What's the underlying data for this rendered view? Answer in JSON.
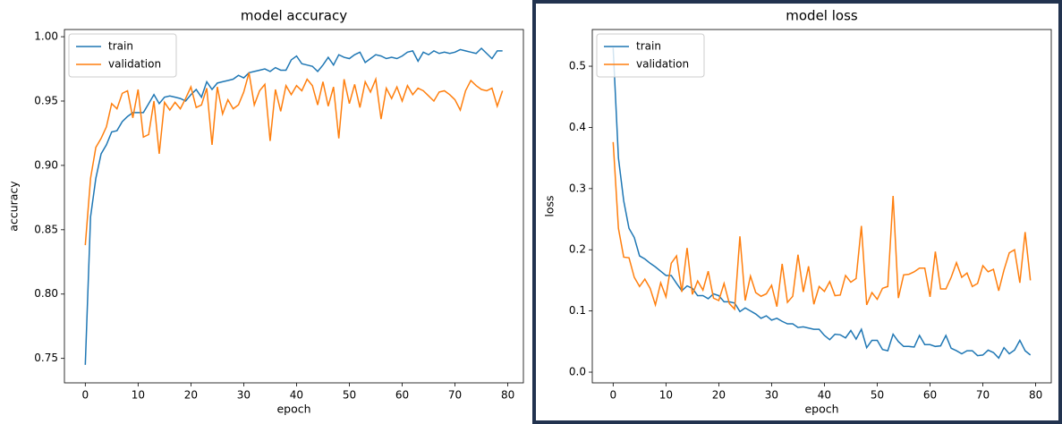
{
  "chart_data": [
    {
      "type": "line",
      "title": "model accuracy",
      "xlabel": "epoch",
      "ylabel": "accuracy",
      "x": [
        0,
        1,
        2,
        3,
        4,
        5,
        6,
        7,
        8,
        9,
        10,
        11,
        12,
        13,
        14,
        15,
        16,
        17,
        18,
        19,
        20,
        21,
        22,
        23,
        24,
        25,
        26,
        27,
        28,
        29,
        30,
        31,
        32,
        33,
        34,
        35,
        36,
        37,
        38,
        39,
        40,
        41,
        42,
        43,
        44,
        45,
        46,
        47,
        48,
        49,
        50,
        51,
        52,
        53,
        54,
        55,
        56,
        57,
        58,
        59,
        60,
        61,
        62,
        63,
        64,
        65,
        66,
        67,
        68,
        69,
        70,
        71,
        72,
        73,
        74,
        75,
        76,
        77,
        78,
        79
      ],
      "series": [
        {
          "name": "train",
          "color": "#1f77b4",
          "values": [
            0.745,
            0.86,
            0.89,
            0.909,
            0.916,
            0.926,
            0.927,
            0.934,
            0.938,
            0.941,
            0.941,
            0.941,
            0.948,
            0.955,
            0.948,
            0.953,
            0.954,
            0.953,
            0.952,
            0.95,
            0.955,
            0.959,
            0.953,
            0.965,
            0.959,
            0.964,
            0.965,
            0.966,
            0.967,
            0.97,
            0.968,
            0.972,
            0.973,
            0.974,
            0.975,
            0.973,
            0.976,
            0.974,
            0.974,
            0.982,
            0.985,
            0.979,
            0.978,
            0.977,
            0.973,
            0.978,
            0.984,
            0.978,
            0.986,
            0.984,
            0.983,
            0.986,
            0.988,
            0.98,
            0.983,
            0.986,
            0.985,
            0.983,
            0.984,
            0.983,
            0.985,
            0.988,
            0.989,
            0.981,
            0.988,
            0.986,
            0.989,
            0.987,
            0.988,
            0.987,
            0.988,
            0.99,
            0.989,
            0.988,
            0.987,
            0.991,
            0.987,
            0.983,
            0.989,
            0.989
          ]
        },
        {
          "name": "validation",
          "color": "#ff7f0e",
          "values": [
            0.838,
            0.89,
            0.914,
            0.921,
            0.93,
            0.948,
            0.944,
            0.956,
            0.958,
            0.937,
            0.959,
            0.922,
            0.924,
            0.95,
            0.909,
            0.949,
            0.943,
            0.949,
            0.944,
            0.952,
            0.961,
            0.945,
            0.947,
            0.96,
            0.916,
            0.961,
            0.94,
            0.951,
            0.944,
            0.947,
            0.957,
            0.972,
            0.947,
            0.958,
            0.963,
            0.919,
            0.959,
            0.942,
            0.962,
            0.955,
            0.962,
            0.958,
            0.967,
            0.962,
            0.947,
            0.965,
            0.946,
            0.961,
            0.921,
            0.967,
            0.948,
            0.963,
            0.945,
            0.965,
            0.957,
            0.967,
            0.936,
            0.96,
            0.952,
            0.961,
            0.95,
            0.962,
            0.955,
            0.96,
            0.958,
            0.954,
            0.95,
            0.957,
            0.958,
            0.955,
            0.951,
            0.943,
            0.958,
            0.966,
            0.962,
            0.959,
            0.958,
            0.96,
            0.946,
            0.958
          ]
        }
      ],
      "xlim": [
        -3.95,
        82.95
      ],
      "ylim": [
        0.731,
        1.0056
      ],
      "xticks": [
        0,
        10,
        20,
        30,
        40,
        50,
        60,
        70,
        80
      ],
      "yticks": [
        {
          "value": 0.75,
          "label": "0.75"
        },
        {
          "value": 0.8,
          "label": "0.80"
        },
        {
          "value": 0.85,
          "label": "0.85"
        },
        {
          "value": 0.9,
          "label": "0.90"
        },
        {
          "value": 0.95,
          "label": "0.95"
        },
        {
          "value": 1,
          "label": "1.00"
        }
      ],
      "legend": "upper left"
    },
    {
      "type": "line",
      "title": "model loss",
      "xlabel": "epoch",
      "ylabel": "loss",
      "x": [
        0,
        1,
        2,
        3,
        4,
        5,
        6,
        7,
        8,
        9,
        10,
        11,
        12,
        13,
        14,
        15,
        16,
        17,
        18,
        19,
        20,
        21,
        22,
        23,
        24,
        25,
        26,
        27,
        28,
        29,
        30,
        31,
        32,
        33,
        34,
        35,
        36,
        37,
        38,
        39,
        40,
        41,
        42,
        43,
        44,
        45,
        46,
        47,
        48,
        49,
        50,
        51,
        52,
        53,
        54,
        55,
        56,
        57,
        58,
        59,
        60,
        61,
        62,
        63,
        64,
        65,
        66,
        67,
        68,
        69,
        70,
        71,
        72,
        73,
        74,
        75,
        76,
        77,
        78,
        79
      ],
      "series": [
        {
          "name": "train",
          "color": "#1f77b4",
          "values": [
            0.53,
            0.35,
            0.28,
            0.235,
            0.22,
            0.19,
            0.185,
            0.178,
            0.172,
            0.165,
            0.158,
            0.158,
            0.145,
            0.133,
            0.141,
            0.137,
            0.125,
            0.125,
            0.12,
            0.128,
            0.125,
            0.115,
            0.115,
            0.113,
            0.099,
            0.105,
            0.1,
            0.095,
            0.088,
            0.092,
            0.085,
            0.088,
            0.083,
            0.079,
            0.079,
            0.073,
            0.074,
            0.072,
            0.07,
            0.07,
            0.06,
            0.053,
            0.062,
            0.061,
            0.056,
            0.068,
            0.054,
            0.07,
            0.04,
            0.052,
            0.052,
            0.037,
            0.035,
            0.062,
            0.05,
            0.042,
            0.042,
            0.041,
            0.06,
            0.045,
            0.045,
            0.042,
            0.043,
            0.06,
            0.039,
            0.035,
            0.03,
            0.035,
            0.035,
            0.027,
            0.028,
            0.036,
            0.032,
            0.023,
            0.04,
            0.03,
            0.036,
            0.052,
            0.035,
            0.028
          ]
        },
        {
          "name": "validation",
          "color": "#ff7f0e",
          "values": [
            0.376,
            0.235,
            0.188,
            0.187,
            0.155,
            0.14,
            0.152,
            0.137,
            0.11,
            0.146,
            0.123,
            0.178,
            0.19,
            0.131,
            0.203,
            0.127,
            0.149,
            0.134,
            0.165,
            0.121,
            0.117,
            0.145,
            0.112,
            0.103,
            0.222,
            0.117,
            0.157,
            0.13,
            0.124,
            0.128,
            0.142,
            0.107,
            0.177,
            0.114,
            0.124,
            0.192,
            0.131,
            0.173,
            0.111,
            0.14,
            0.132,
            0.148,
            0.125,
            0.126,
            0.158,
            0.147,
            0.153,
            0.239,
            0.11,
            0.13,
            0.119,
            0.137,
            0.14,
            0.288,
            0.121,
            0.159,
            0.16,
            0.164,
            0.17,
            0.17,
            0.123,
            0.197,
            0.136,
            0.136,
            0.155,
            0.179,
            0.155,
            0.162,
            0.14,
            0.145,
            0.174,
            0.164,
            0.168,
            0.133,
            0.167,
            0.195,
            0.2,
            0.146,
            0.229,
            0.15
          ]
        }
      ],
      "xlim": [
        -3.95,
        82.95
      ],
      "ylim": [
        -0.0175,
        0.56
      ],
      "xticks": [
        0,
        10,
        20,
        30,
        40,
        50,
        60,
        70,
        80
      ],
      "yticks": [
        {
          "value": 0,
          "label": "0.0"
        },
        0.1,
        0.2,
        0.3,
        0.4,
        0.5
      ],
      "legend": "upper left"
    }
  ]
}
